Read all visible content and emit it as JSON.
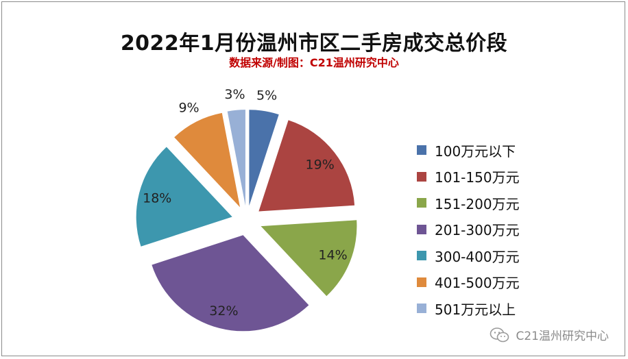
{
  "chart_data": {
    "type": "pie",
    "title": "2022年1月份温州市区二手房成交总价段",
    "subtitle": "数据来源/制图：C21温州研究中心",
    "categories": [
      "100万元以下",
      "101-150万元",
      "151-200万元",
      "201-300万元",
      "300-400万元",
      "401-500万元",
      "501万元以上"
    ],
    "values": [
      5,
      19,
      14,
      32,
      18,
      9,
      3
    ],
    "labels": [
      "5%",
      "19%",
      "14%",
      "32%",
      "18%",
      "9%",
      "3%"
    ],
    "colors": [
      "#4a72aa",
      "#ab4441",
      "#8aa64a",
      "#6e5594",
      "#3d97ae",
      "#df8a3c",
      "#98b0d6"
    ],
    "legend_position": "right",
    "exploded": true
  },
  "watermark": {
    "text": "C21温州研究中心",
    "icon": "wechat-icon"
  }
}
